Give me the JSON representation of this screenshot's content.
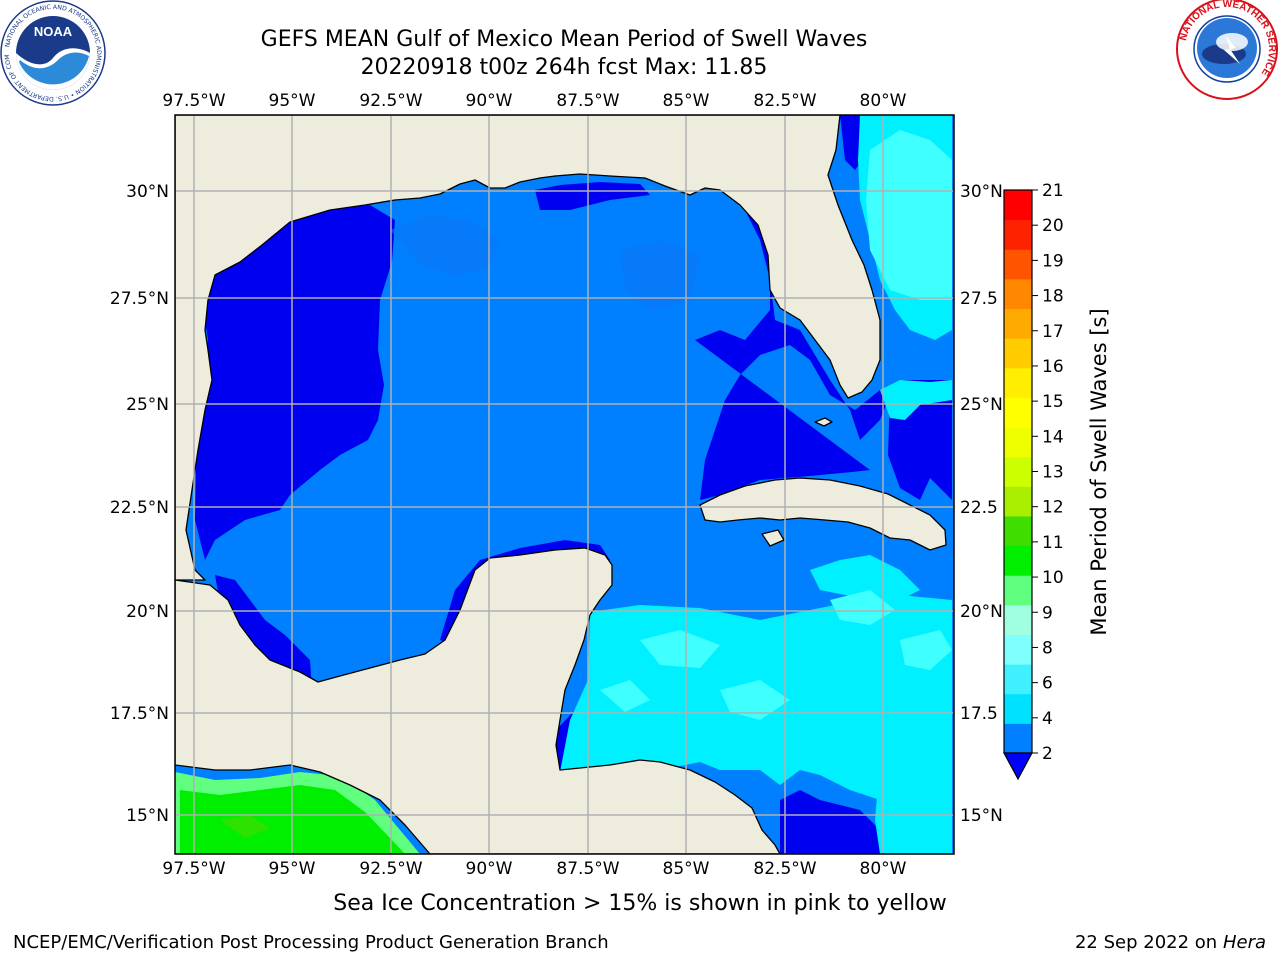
{
  "title": {
    "line1": "GEFS MEAN Gulf of Mexico Mean Period of Swell Waves",
    "line2": "20220918 t00z 264h fcst   Max: 11.85"
  },
  "axes": {
    "lon_labels": [
      "97.5°W",
      "95°W",
      "92.5°W",
      "90°W",
      "87.5°W",
      "85°W",
      "82.5°W",
      "80°W"
    ],
    "lon_values": [
      -97.5,
      -95,
      -92.5,
      -90,
      -87.5,
      -85,
      -82.5,
      -80
    ],
    "lat_labels_left": [
      "30°N",
      "27.5°N",
      "25°N",
      "22.5°N",
      "20°N",
      "17.5°N",
      "15°N"
    ],
    "lat_labels_right": [
      "30°N",
      "27.5",
      "25°N",
      "22.5",
      "20°N",
      "17.5",
      "15°N"
    ],
    "lat_values": [
      30,
      27.5,
      25,
      22.5,
      20,
      17.5,
      15
    ],
    "lon_range": [
      -98,
      -78.2
    ],
    "lat_range": [
      14,
      31.8
    ]
  },
  "colorbar": {
    "label": "Mean Period of Swell Waves [s]",
    "ticks": [
      "2",
      "4",
      "6",
      "8",
      "9",
      "10",
      "11",
      "12",
      "13",
      "14",
      "15",
      "16",
      "17",
      "18",
      "19",
      "20",
      "21"
    ],
    "colors": [
      "#0080ff",
      "#00e0ff",
      "#40f0ff",
      "#80ffff",
      "#a0ffe0",
      "#60ff80",
      "#00ee00",
      "#40dd00",
      "#aaee00",
      "#ccff00",
      "#eeff00",
      "#ffff00",
      "#ffee00",
      "#ffcc00",
      "#ffaa00",
      "#ff8800",
      "#ff5500",
      "#ff2200",
      "#ff0000"
    ],
    "under_color": "#0000ff"
  },
  "palette": {
    "land": "#eeecdc",
    "deep_blue": "#0000f0",
    "mid_blue": "#0080ff",
    "cyan": "#00f0ff",
    "light_cyan": "#40ffff",
    "green": "#00ee00",
    "light_green": "#60ff80",
    "grid": "#b0b0b0"
  },
  "logos": {
    "noaa_text": "NOAA",
    "noaa_ring": "NATIONAL OCEANIC AND ATMOSPHERIC ADMINISTRATION • U.S. DEPARTMENT OF COMMERCE •",
    "nws_ring": "NATIONAL WEATHER SERVICE"
  },
  "note": "Sea Ice Concentration > 15% is shown in pink to yellow",
  "footer": {
    "left": "NCEP/EMC/Verification Post Processing Product Generation Branch",
    "right_date": "22 Sep 2022 on",
    "right_machine": "Hera"
  }
}
